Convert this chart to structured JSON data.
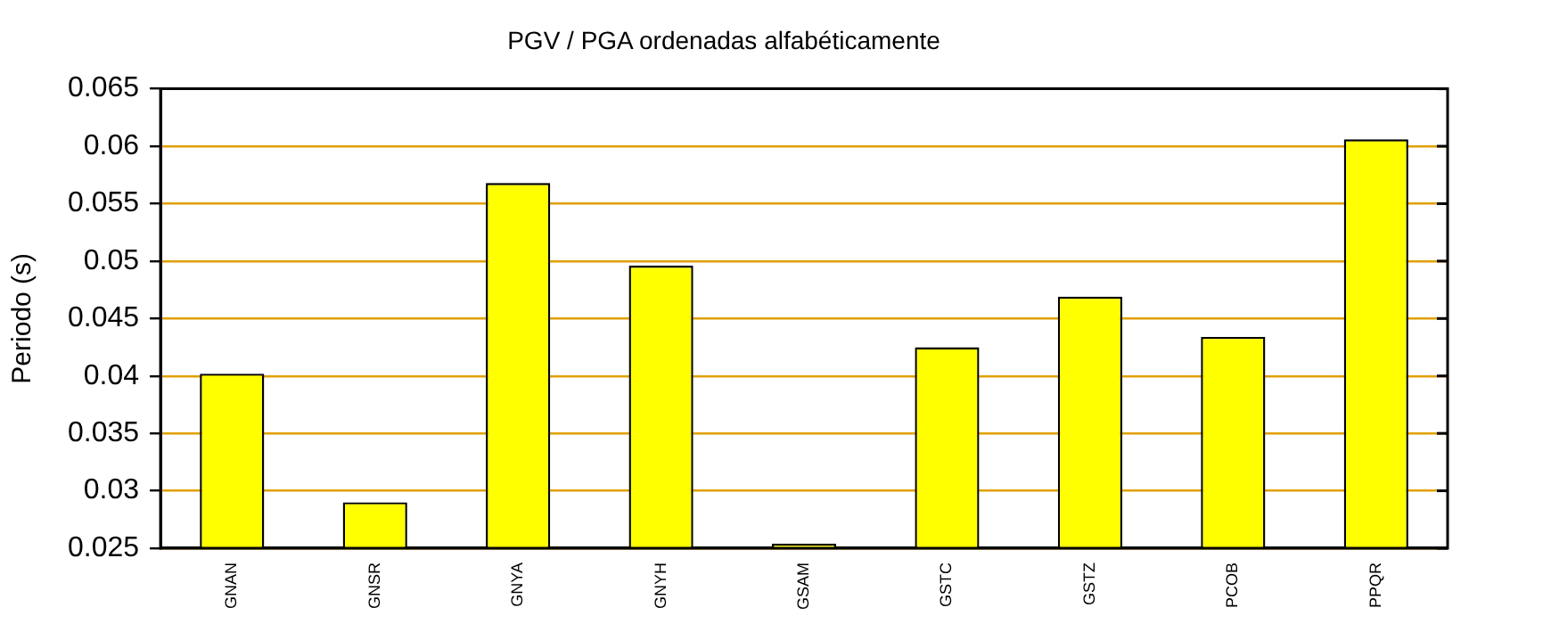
{
  "chart_data": {
    "type": "bar",
    "title": "PGV / PGA ordenadas alfabéticamente",
    "ylabel": "Periodo (s)",
    "categories": [
      "GNAN",
      "GNSR",
      "GNYA",
      "GNYH",
      "GSAM",
      "GSTC",
      "GSTZ",
      "PCOB",
      "PPQR"
    ],
    "values": [
      0.0402,
      0.029,
      0.0568,
      0.0496,
      0.0254,
      0.0425,
      0.0469,
      0.0434,
      0.0606
    ],
    "color": "#ffff00",
    "ylim": [
      0.025,
      0.065
    ],
    "yticks": [
      0.025,
      0.03,
      0.035,
      0.04,
      0.045,
      0.05,
      0.055,
      0.06,
      0.065
    ],
    "grid": "y",
    "legend": false
  }
}
